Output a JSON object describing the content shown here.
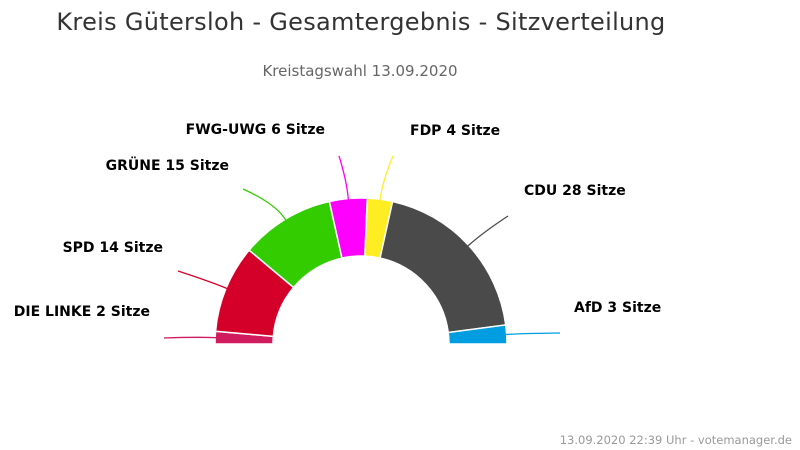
{
  "title": "Kreis Gütersloh - Gesamtergebnis - Sitzverteilung",
  "subtitle": "Kreistagswahl 13.09.2020",
  "credits": "13.09.2020 22:39 Uhr - votemanager.de",
  "chart_data": {
    "type": "pie",
    "variant": "semicircle-donut",
    "title": "Kreis Gütersloh - Gesamtergebnis - Sitzverteilung",
    "subtitle": "Kreistagswahl 13.09.2020",
    "unit": "Sitze",
    "series": [
      {
        "values": [
          {
            "name": "DIE LINKE",
            "label": "DIE LINKE 2 Sitze",
            "value": 2,
            "color": "#d01c5e"
          },
          {
            "name": "SPD",
            "label": "SPD 14 Sitze",
            "value": 14,
            "color": "#d5002a"
          },
          {
            "name": "GRÜNE",
            "label": "GRÜNE 15 Sitze",
            "value": 15,
            "color": "#33cc00"
          },
          {
            "name": "FWG-UWG",
            "label": "FWG-UWG 6 Sitze",
            "value": 6,
            "color": "#ff00ff"
          },
          {
            "name": "FDP",
            "label": "FDP 4 Sitze",
            "value": 4,
            "color": "#ffed23"
          },
          {
            "name": "CDU",
            "label": "CDU 28 Sitze",
            "value": 28,
            "color": "#4a4a4a"
          },
          {
            "name": "AfD",
            "label": "AfD 3 Sitze",
            "value": 3,
            "color": "#009ee0"
          }
        ]
      }
    ]
  }
}
